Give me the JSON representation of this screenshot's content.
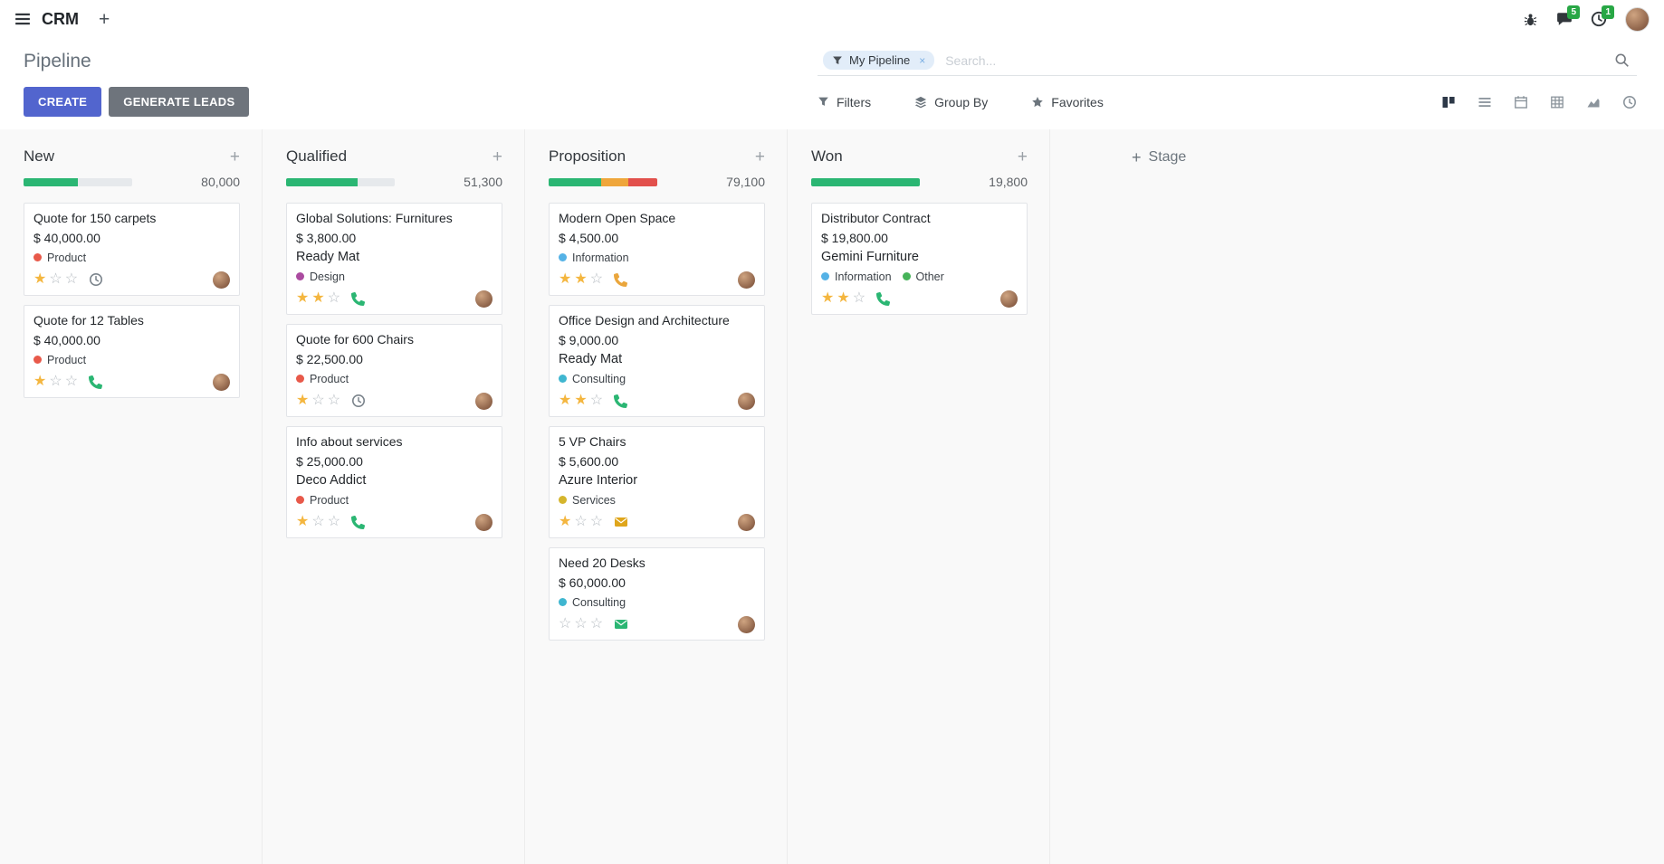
{
  "icons": {
    "plus": "+",
    "star_filled": "★",
    "star_empty": "☆"
  },
  "colors": {
    "primary": "#5265CE",
    "secondary_button": "#6E747C",
    "success": "#2BB673",
    "warning": "#EFA63B",
    "danger": "#E2504C",
    "star_gold": "#F4B63F",
    "progress_track": "#E6E9EC"
  },
  "topbar": {
    "app_name": "CRM",
    "badges": {
      "messages": "5",
      "activities": "1"
    }
  },
  "control_panel": {
    "title": "Pipeline",
    "search": {
      "facet_label": "My Pipeline",
      "placeholder": "Search...",
      "remove_label": "×"
    },
    "buttons": [
      {
        "label": "CREATE"
      },
      {
        "label": "GENERATE LEADS"
      }
    ],
    "tools": [
      {
        "label": "Filters"
      },
      {
        "label": "Group By"
      },
      {
        "label": "Favorites"
      }
    ]
  },
  "view_switcher": {
    "active": "kanban",
    "views": [
      "kanban",
      "list",
      "calendar",
      "pivot",
      "graph",
      "activity"
    ]
  },
  "kanban": {
    "add_stage_label": "Stage",
    "columns": [
      {
        "name": "New",
        "total": "80,000",
        "progress": [
          {
            "color": "#2BB673",
            "pct": 50
          }
        ],
        "cards": [
          {
            "title": "Quote for 150 carpets",
            "amount": "$ 40,000.00",
            "partner": "",
            "tags": [
              {
                "label": "Product",
                "color": "#E8594A"
              }
            ],
            "stars": 1,
            "activity": {
              "icon": "clock",
              "color": "#7A838B"
            }
          },
          {
            "title": "Quote for 12 Tables",
            "amount": "$ 40,000.00",
            "partner": "",
            "tags": [
              {
                "label": "Product",
                "color": "#E8594A"
              }
            ],
            "stars": 1,
            "activity": {
              "icon": "phone",
              "color": "#2BB673"
            }
          }
        ]
      },
      {
        "name": "Qualified",
        "total": "51,300",
        "progress": [
          {
            "color": "#2BB673",
            "pct": 66
          }
        ],
        "cards": [
          {
            "title": "Global Solutions: Furnitures",
            "amount": "$ 3,800.00",
            "partner": "Ready Mat",
            "tags": [
              {
                "label": "Design",
                "color": "#AB4BA0"
              }
            ],
            "stars": 2,
            "activity": {
              "icon": "phone",
              "color": "#2BB673"
            }
          },
          {
            "title": "Quote for 600 Chairs",
            "amount": "$ 22,500.00",
            "partner": "",
            "tags": [
              {
                "label": "Product",
                "color": "#E8594A"
              }
            ],
            "stars": 1,
            "activity": {
              "icon": "clock",
              "color": "#7A838B"
            }
          },
          {
            "title": "Info about services",
            "amount": "$ 25,000.00",
            "partner": "Deco Addict",
            "tags": [
              {
                "label": "Product",
                "color": "#E8594A"
              }
            ],
            "stars": 1,
            "activity": {
              "icon": "phone",
              "color": "#2BB673"
            }
          }
        ]
      },
      {
        "name": "Proposition",
        "total": "79,100",
        "progress": [
          {
            "color": "#2BB673",
            "pct": 48
          },
          {
            "color": "#EFA63B",
            "pct": 25
          },
          {
            "color": "#E2504C",
            "pct": 27
          }
        ],
        "cards": [
          {
            "title": "Modern Open Space",
            "amount": "$ 4,500.00",
            "partner": "",
            "tags": [
              {
                "label": "Information",
                "color": "#55B2E6"
              }
            ],
            "stars": 2,
            "activity": {
              "icon": "phone",
              "color": "#EAA63C"
            }
          },
          {
            "title": "Office Design and Architecture",
            "amount": "$ 9,000.00",
            "partner": "Ready Mat",
            "tags": [
              {
                "label": "Consulting",
                "color": "#3FB6D0"
              }
            ],
            "stars": 2,
            "activity": {
              "icon": "phone",
              "color": "#2BB673"
            }
          },
          {
            "title": "5 VP Chairs",
            "amount": "$ 5,600.00",
            "partner": "Azure Interior",
            "tags": [
              {
                "label": "Services",
                "color": "#D5B52C"
              }
            ],
            "stars": 1,
            "activity": {
              "icon": "envelope",
              "color": "#DFA61C"
            }
          },
          {
            "title": "Need 20 Desks",
            "amount": "$ 60,000.00",
            "partner": "",
            "tags": [
              {
                "label": "Consulting",
                "color": "#3FB6D0"
              }
            ],
            "stars": 0,
            "activity": {
              "icon": "envelope",
              "color": "#2BB673"
            }
          }
        ]
      },
      {
        "name": "Won",
        "total": "19,800",
        "progress": [
          {
            "color": "#2BB673",
            "pct": 100
          }
        ],
        "cards": [
          {
            "title": "Distributor Contract",
            "amount": "$ 19,800.00",
            "partner": "Gemini Furniture",
            "tags": [
              {
                "label": "Information",
                "color": "#55B2E6"
              },
              {
                "label": "Other",
                "color": "#46B359"
              }
            ],
            "stars": 2,
            "activity": {
              "icon": "phone",
              "color": "#2BB673"
            }
          }
        ]
      }
    ]
  }
}
